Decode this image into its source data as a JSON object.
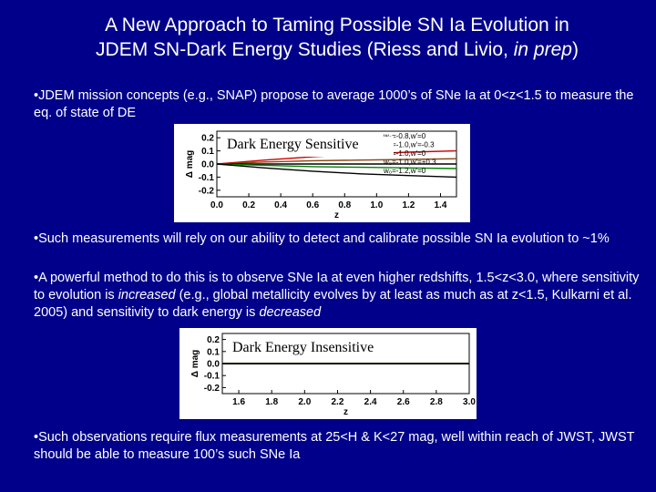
{
  "slide": {
    "title_line1": "A New Approach to Taming Possible SN Ia Evolution in",
    "title_line2_pre": "JDEM SN-Dark Energy Studies (Riess and Livio, ",
    "title_line2_em": "in prep",
    "title_line2_post": ")",
    "bullet1": "•JDEM mission concepts (e.g., SNAP) propose to average 1000’s of SNe Ia at 0<z<1.5 to measure the eq. of state of DE",
    "bullet2": "•Such measurements will rely on our ability to detect and calibrate possible SN Ia evolution to ~1%",
    "bullet3_a": "•A powerful method to do this is to observe SNe Ia at even higher redshifts, 1.5<z<3.0, where sensitivity to evolution is ",
    "bullet3_em1": "increased",
    "bullet3_b": " (e.g., global metallicity evolves by at least as much as at z<1.5, Kulkarni et al. 2005) and sensitivity to dark energy is ",
    "bullet3_em2": "decreased",
    "bullet4": "•Such observations require flux measurements at 25<H & K<27 mag, well within reach of JWST, JWST should be able to measure 100’s such SNe Ia"
  },
  "chart_data": [
    {
      "type": "line",
      "label": "Dark Energy Sensitive",
      "ylabel": "Δ mag",
      "xlabel": "z",
      "xlim": [
        0.0,
        1.5
      ],
      "ylim": [
        -0.25,
        0.25
      ],
      "xticks": [
        "0.0",
        "0.2",
        "0.4",
        "0.6",
        "0.8",
        "1.0",
        "1.2",
        "1.4"
      ],
      "yticks": [
        "0.2",
        "0.1",
        "0.0",
        "-0.1",
        "-0.2"
      ],
      "legend": [
        "w₀=-0.8,w'=0",
        "w₀=-1.0,w'=-0.3",
        "w₀=-1.0,w'=0",
        "w₀=-1.0,w'=+0.3",
        "w₀=-1.2,w'=0"
      ],
      "series": [
        {
          "color": "#cc0000",
          "x": [
            0,
            0.3,
            0.6,
            0.9,
            1.2,
            1.5
          ],
          "y": [
            0,
            0.03,
            0.055,
            0.075,
            0.09,
            0.1
          ]
        },
        {
          "color": "#8b4513",
          "x": [
            0,
            0.3,
            0.6,
            0.9,
            1.2,
            1.5
          ],
          "y": [
            0,
            0.015,
            0.025,
            0.03,
            0.035,
            0.04
          ]
        },
        {
          "color": "#000000",
          "x": [
            0,
            0.3,
            0.6,
            0.9,
            1.2,
            1.5
          ],
          "y": [
            0,
            0,
            0,
            0,
            0,
            0
          ]
        },
        {
          "color": "#008000",
          "x": [
            0,
            0.3,
            0.6,
            0.9,
            1.2,
            1.5
          ],
          "y": [
            0,
            -0.01,
            -0.02,
            -0.025,
            -0.03,
            -0.035
          ]
        },
        {
          "color": "#000000",
          "x": [
            0,
            0.3,
            0.6,
            0.9,
            1.2,
            1.5
          ],
          "y": [
            0,
            -0.03,
            -0.055,
            -0.075,
            -0.088,
            -0.1
          ]
        }
      ]
    },
    {
      "type": "line",
      "label": "Dark Energy Insensitive",
      "ylabel": "Δ mag",
      "xlabel": "z",
      "xlim": [
        1.5,
        3.0
      ],
      "ylim": [
        -0.25,
        0.25
      ],
      "xticks": [
        "1.6",
        "1.8",
        "2.0",
        "2.2",
        "2.4",
        "2.6",
        "2.8",
        "3.0"
      ],
      "yticks": [
        "0.2",
        "0.1",
        "0.0",
        "-0.1",
        "-0.2"
      ],
      "series": [
        {
          "color": "#cc0000",
          "x": [
            1.5,
            3.0
          ],
          "y": [
            0.002,
            0.002
          ]
        },
        {
          "color": "#8b4513",
          "x": [
            1.5,
            3.0
          ],
          "y": [
            0.001,
            0.001
          ]
        },
        {
          "color": "#000000",
          "x": [
            1.5,
            3.0
          ],
          "y": [
            0,
            0
          ]
        },
        {
          "color": "#008000",
          "x": [
            1.5,
            3.0
          ],
          "y": [
            -0.001,
            -0.001
          ]
        },
        {
          "color": "#000000",
          "x": [
            1.5,
            3.0
          ],
          "y": [
            -0.002,
            -0.002
          ]
        }
      ]
    }
  ]
}
